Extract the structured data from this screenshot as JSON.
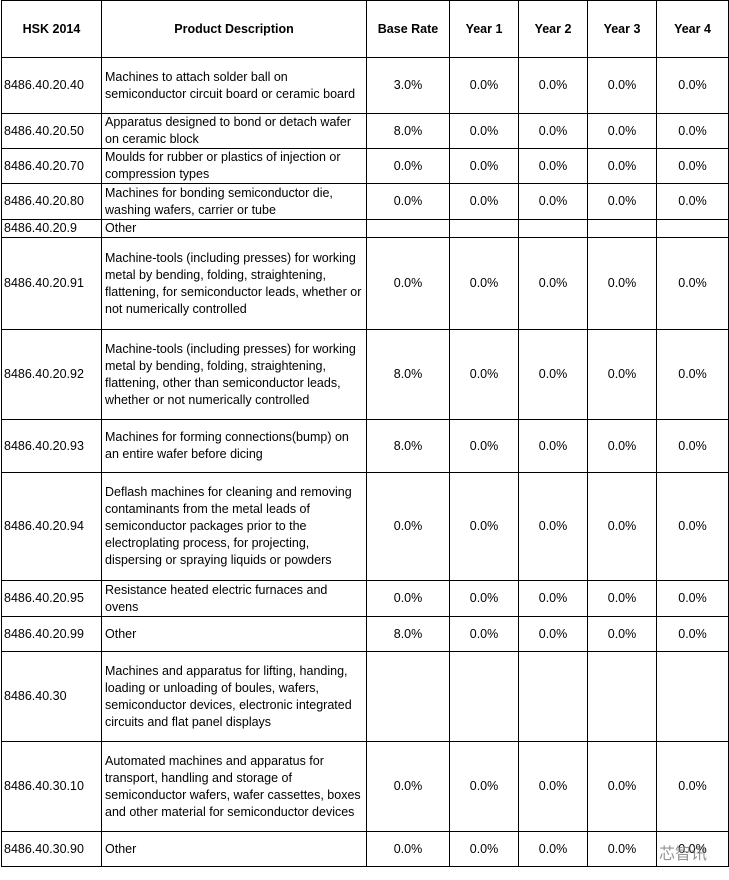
{
  "table": {
    "headers": [
      "HSK 2014",
      "Product Description",
      "Base Rate",
      "Year 1",
      "Year 2",
      "Year 3",
      "Year 4"
    ],
    "rows": [
      {
        "code": "8486.40.20.40",
        "description": "Machines to attach solder ball on semiconductor circuit board or ceramic board",
        "rates": [
          "3.0%",
          "0.0%",
          "0.0%",
          "0.0%",
          "0.0%"
        ]
      },
      {
        "code": "8486.40.20.50",
        "description": "Apparatus designed to bond or detach wafer on ceramic block",
        "rates": [
          "8.0%",
          "0.0%",
          "0.0%",
          "0.0%",
          "0.0%"
        ]
      },
      {
        "code": "8486.40.20.70",
        "description": "Moulds for rubber or plastics of injection or compression types",
        "rates": [
          "0.0%",
          "0.0%",
          "0.0%",
          "0.0%",
          "0.0%"
        ]
      },
      {
        "code": "8486.40.20.80",
        "description": "Machines for bonding semiconductor die, washing wafers, carrier or tube",
        "rates": [
          "0.0%",
          "0.0%",
          "0.0%",
          "0.0%",
          "0.0%"
        ]
      },
      {
        "code": "8486.40.20.9",
        "description": "Other",
        "rates": []
      },
      {
        "code": "8486.40.20.91",
        "description": "Machine-tools (including presses) for working metal by bending, folding, straightening, flattening, for semiconductor leads, whether or not numerically controlled",
        "rates": [
          "0.0%",
          "0.0%",
          "0.0%",
          "0.0%",
          "0.0%"
        ]
      },
      {
        "code": "8486.40.20.92",
        "description": "Machine-tools (including presses) for working metal by bending, folding, straightening, flattening, other than semiconductor leads, whether or not numerically controlled",
        "rates": [
          "8.0%",
          "0.0%",
          "0.0%",
          "0.0%",
          "0.0%"
        ]
      },
      {
        "code": "8486.40.20.93",
        "description": "Machines for forming connections(bump) on an entire wafer before dicing",
        "rates": [
          "8.0%",
          "0.0%",
          "0.0%",
          "0.0%",
          "0.0%"
        ]
      },
      {
        "code": "8486.40.20.94",
        "description": "Deflash machines for cleaning and removing contaminants from the metal leads of semiconductor packages prior to the electroplating process, for projecting, dispersing or spraying liquids or powders",
        "rates": [
          "0.0%",
          "0.0%",
          "0.0%",
          "0.0%",
          "0.0%"
        ]
      },
      {
        "code": "8486.40.20.95",
        "description": "Resistance heated electric furnaces and ovens",
        "rates": [
          "0.0%",
          "0.0%",
          "0.0%",
          "0.0%",
          "0.0%"
        ]
      },
      {
        "code": "8486.40.20.99",
        "description": "Other",
        "rates": [
          "8.0%",
          "0.0%",
          "0.0%",
          "0.0%",
          "0.0%"
        ]
      },
      {
        "code": "8486.40.30",
        "description": "Machines and apparatus for lifting, handing, loading or unloading of boules, wafers,  semiconductor devices, electronic integrated circuits and flat panel displays",
        "rates": []
      },
      {
        "code": "8486.40.30.10",
        "description": "Automated machines and apparatus for transport, handling and storage of semiconductor wafers, wafer cassettes, boxes and other material for semiconductor devices",
        "rates": [
          "0.0%",
          "0.0%",
          "0.0%",
          "0.0%",
          "0.0%"
        ]
      },
      {
        "code": "8486.40.30.90",
        "description": "Other",
        "rates": [
          "0.0%",
          "0.0%",
          "0.0%",
          "0.0%",
          "0.0%"
        ]
      }
    ]
  },
  "watermark": "芯智讯"
}
